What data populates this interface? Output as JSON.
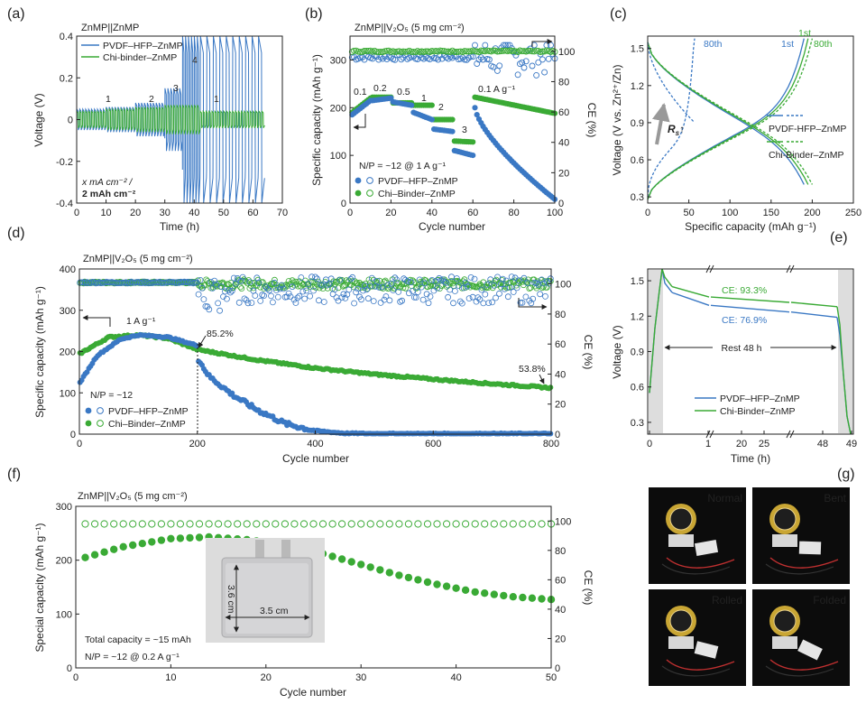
{
  "colors": {
    "blue": "#3a78c4",
    "green": "#3aaa35",
    "grey": "#999999"
  },
  "panels": {
    "a": {
      "label": "(a)",
      "title": "ZnMP||ZnMP",
      "xlabel": "Time (h)",
      "ylabel": "Voltage (V)",
      "xticks": [
        "0",
        "10",
        "20",
        "30",
        "40",
        "50",
        "60",
        "70"
      ],
      "yticks": [
        "-0.4",
        "-0.2",
        "0",
        "0.2",
        "0.4"
      ],
      "legend": [
        "PVDF–HFP–ZnMP",
        "Chi-binder–ZnMP"
      ],
      "ann_rate_labels": [
        "1",
        "2",
        "3",
        "4",
        "1"
      ],
      "ann_cond1": "x mA cm⁻² /",
      "ann_cond2": "2 mAh cm⁻²"
    },
    "b": {
      "label": "(b)",
      "title": "ZnMP||V₂O₅ (5 mg cm⁻²)",
      "xlabel": "Cycle number",
      "ylabel": "Specific capacity (mAh g⁻¹)",
      "y2label": "CE (%)",
      "xticks": [
        "0",
        "20",
        "40",
        "60",
        "80",
        "100"
      ],
      "yticks": [
        "0",
        "100",
        "200",
        "300"
      ],
      "y2ticks": [
        "0",
        "20",
        "40",
        "60",
        "80",
        "100"
      ],
      "rates": [
        "0.1",
        "0.2",
        "0.5",
        "1",
        "2",
        "3",
        "0.1 A g⁻¹"
      ],
      "np": "N/P = ~12 @ 1 A g⁻¹",
      "legend": [
        "PVDF–HFP–ZnMP",
        "Chi–Binder–ZnMP"
      ]
    },
    "c": {
      "label": "(c)",
      "xlabel": "Specific capacity (mAh g⁻¹)",
      "ylabel": "Voltage (V vs. Zn²⁺/Zn)",
      "xticks": [
        "0",
        "50",
        "100",
        "150",
        "200",
        "250"
      ],
      "yticks": [
        "0.3",
        "0.6",
        "0.9",
        "1.2",
        "1.5"
      ],
      "cycle_labels": {
        "b80": "80th",
        "b1": "1st",
        "g1": "1st",
        "g80": "80th"
      },
      "rs": "R",
      "legend": [
        "PVDF-HFP–ZnMP",
        "Chi-Binder–ZnMP"
      ]
    },
    "d": {
      "label": "(d)",
      "title": "ZnMP||V₂O₅ (5 mg cm⁻²)",
      "xlabel": "Cycle number",
      "ylabel": "Specific capacity (mAh g⁻¹)",
      "y2label": "CE (%)",
      "xticks": [
        "0",
        "200",
        "400",
        "600",
        "800"
      ],
      "yticks": [
        "0",
        "100",
        "200",
        "300",
        "400"
      ],
      "y2ticks": [
        "0",
        "20",
        "40",
        "60",
        "80",
        "100"
      ],
      "rate": "1 A g⁻¹",
      "np": "N/P = ~12",
      "pct1": "85.2%",
      "pct2": "53.8%",
      "legend": [
        "PVDF–HFP–ZnMP",
        "Chi–Binder–ZnMP"
      ]
    },
    "e": {
      "label": "(e)",
      "xlabel": "Time (h)",
      "ylabel": "Voltage (V)",
      "xticks": [
        "0",
        "1",
        "20",
        "25",
        "48",
        "49"
      ],
      "yticks": [
        "0.3",
        "0.6",
        "0.9",
        "1.2",
        "1.5"
      ],
      "ce_green": "CE: 93.3%",
      "ce_blue": "CE: 76.9%",
      "rest": "Rest 48 h",
      "legend": [
        "PVDF–HFP–ZnMP",
        "Chi-Binder–ZnMP"
      ]
    },
    "f": {
      "label": "(f)",
      "title": "ZnMP||V₂O₅ (5 mg cm⁻²)",
      "xlabel": "Cycle number",
      "ylabel": "Special capacity (mAh g⁻¹)",
      "y2label": "CE (%)",
      "xticks": [
        "0",
        "10",
        "20",
        "30",
        "40",
        "50"
      ],
      "yticks": [
        "0",
        "100",
        "200",
        "300"
      ],
      "y2ticks": [
        "0",
        "20",
        "40",
        "60",
        "80",
        "100"
      ],
      "dim_v": "3.6 cm",
      "dim_h": "3.5 cm",
      "total": "Total capacity = ~15 mAh",
      "np": "N/P = ~12 @ 0.2 A g⁻¹"
    },
    "g": {
      "label": "(g)",
      "photos": [
        "Normal",
        "Bent",
        "Rolled",
        "Folded"
      ]
    }
  },
  "chart_data": [
    {
      "panel": "a",
      "type": "line",
      "xlim": [
        0,
        70
      ],
      "ylim": [
        -0.4,
        0.4
      ],
      "series": [
        {
          "name": "PVDF–HFP–ZnMP",
          "segments": [
            {
              "x0": 0,
              "x1": 10,
              "amp": 0.05
            },
            {
              "x0": 10,
              "x1": 20,
              "amp": 0.06
            },
            {
              "x0": 20,
              "x1": 30,
              "amp": 0.08
            },
            {
              "x0": 30,
              "x1": 36,
              "amp": 0.15
            },
            {
              "x0": 36,
              "x1": 42,
              "amp": 0.4
            },
            {
              "x0": 42,
              "x1": 64,
              "amp": 0.4
            }
          ]
        },
        {
          "name": "Chi-binder–ZnMP",
          "segments": [
            {
              "x0": 0,
              "x1": 10,
              "amp": 0.04
            },
            {
              "x0": 10,
              "x1": 20,
              "amp": 0.05
            },
            {
              "x0": 20,
              "x1": 30,
              "amp": 0.06
            },
            {
              "x0": 30,
              "x1": 42,
              "amp": 0.07
            },
            {
              "x0": 42,
              "x1": 64,
              "amp": 0.04
            }
          ]
        }
      ]
    },
    {
      "panel": "b",
      "type": "scatter",
      "xlim": [
        0,
        100
      ],
      "ylim": [
        0,
        350
      ],
      "y2lim": [
        0,
        110
      ],
      "series": [
        {
          "name": "PVDF–HFP–ZnMP",
          "axis": "capacity",
          "steps": [
            [
              1,
              10,
              185,
              215
            ],
            [
              11,
              20,
              215,
              220
            ],
            [
              21,
              30,
              212,
              205
            ],
            [
              31,
              40,
              190,
              175
            ],
            [
              41,
              50,
              155,
              150
            ],
            [
              51,
              60,
              110,
              100
            ],
            [
              61,
              100,
              200,
              8
            ]
          ]
        },
        {
          "name": "Chi–Binder–ZnMP",
          "axis": "capacity",
          "steps": [
            [
              1,
              10,
              190,
              220
            ],
            [
              11,
              20,
              222,
              222
            ],
            [
              21,
              30,
              210,
              210
            ],
            [
              31,
              40,
              205,
              205
            ],
            [
              41,
              50,
              175,
              175
            ],
            [
              51,
              60,
              130,
              128
            ],
            [
              61,
              100,
              222,
              188
            ]
          ]
        },
        {
          "name": "PVDF–HFP–ZnMP",
          "axis": "CE",
          "mean": 96,
          "spread": 12
        },
        {
          "name": "Chi–Binder–ZnMP",
          "axis": "CE",
          "mean": 100,
          "spread": 1
        }
      ]
    },
    {
      "panel": "c",
      "type": "line",
      "xlim": [
        0,
        250
      ],
      "ylim": [
        0.25,
        1.6
      ],
      "series": [
        {
          "name": "PVDF-HFP–ZnMP 1st",
          "capacity": 190
        },
        {
          "name": "PVDF-HFP–ZnMP 80th",
          "capacity": 57
        },
        {
          "name": "Chi-Binder–ZnMP 1st",
          "capacity": 195
        },
        {
          "name": "Chi-Binder–ZnMP 80th",
          "capacity": 200
        }
      ]
    },
    {
      "panel": "d",
      "type": "scatter",
      "xlim": [
        0,
        800
      ],
      "ylim": [
        0,
        400
      ],
      "y2lim": [
        0,
        110
      ],
      "series": [
        {
          "name": "PVDF–HFP–ZnMP",
          "axis": "capacity",
          "points": [
            [
              1,
              125
            ],
            [
              30,
              190
            ],
            [
              70,
              230
            ],
            [
              100,
              240
            ],
            [
              150,
              235
            ],
            [
              199,
              215
            ],
            [
              200,
              185
            ],
            [
              220,
              140
            ],
            [
              260,
              95
            ],
            [
              300,
              60
            ],
            [
              350,
              25
            ],
            [
              400,
              8
            ],
            [
              450,
              2
            ],
            [
              500,
              1
            ],
            [
              800,
              1
            ]
          ]
        },
        {
          "name": "Chi–Binder–ZnMP",
          "axis": "capacity",
          "points": [
            [
              1,
              195
            ],
            [
              50,
              235
            ],
            [
              100,
              240
            ],
            [
              150,
              232
            ],
            [
              200,
              205
            ],
            [
              300,
              180
            ],
            [
              400,
              160
            ],
            [
              500,
              145
            ],
            [
              600,
              133
            ],
            [
              700,
              122
            ],
            [
              800,
              112
            ]
          ]
        },
        {
          "name": "PVDF–HFP–ZnMP",
          "axis": "CE",
          "mean": 97,
          "spread": 12
        },
        {
          "name": "Chi–Binder–ZnMP",
          "axis": "CE",
          "mean": 100,
          "spread": 3
        }
      ]
    },
    {
      "panel": "e",
      "type": "line",
      "ylim": [
        0.2,
        1.6
      ],
      "series": [
        {
          "name": "PVDF–HFP–ZnMP",
          "rest_voltage": [
            1.4,
            1.19
          ],
          "ce": 76.9
        },
        {
          "name": "Chi-Binder–ZnMP",
          "rest_voltage": [
            1.45,
            1.28
          ],
          "ce": 93.3
        }
      ]
    },
    {
      "panel": "f",
      "type": "scatter",
      "xlim": [
        0,
        50
      ],
      "ylim": [
        0,
        300
      ],
      "y2lim": [
        0,
        110
      ],
      "series": [
        {
          "name": "capacity",
          "points": [
            [
              1,
              205
            ],
            [
              5,
              225
            ],
            [
              10,
              240
            ],
            [
              14,
              243
            ],
            [
              18,
              238
            ],
            [
              22,
              228
            ],
            [
              26,
              212
            ],
            [
              30,
              192
            ],
            [
              34,
              172
            ],
            [
              38,
              155
            ],
            [
              42,
              141
            ],
            [
              46,
              132
            ],
            [
              50,
              127
            ]
          ]
        },
        {
          "name": "CE",
          "value": 98
        }
      ]
    }
  ]
}
